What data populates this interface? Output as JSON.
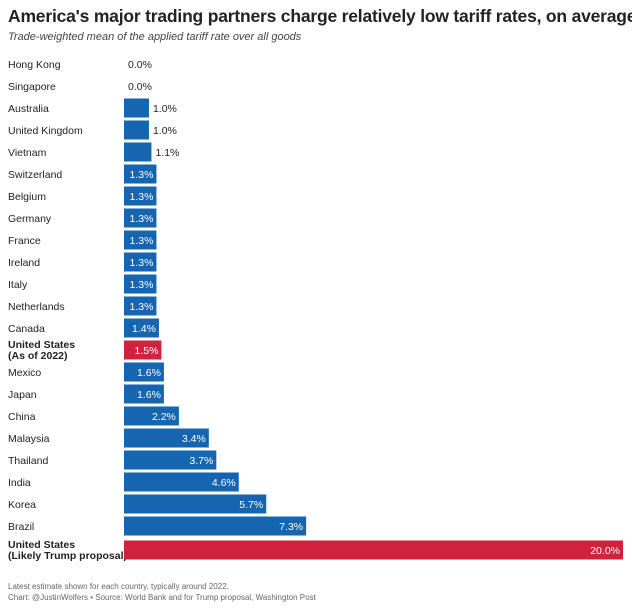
{
  "title": "America's major trading partners charge relatively low tariff rates, on average",
  "subtitle": "Trade-weighted mean of the applied tariff rate over all goods",
  "footer": {
    "note": "Latest estimate shown for each country, typically around 2022.",
    "credit": "Chart: @JustinWolfers • Source: World Bank and for Trump proposal, Washington Post"
  },
  "colors": {
    "default": "#1565b0",
    "highlight": "#d0223f"
  },
  "chart_data": {
    "type": "bar",
    "orientation": "horizontal",
    "xlim": [
      0,
      20
    ],
    "categories": [
      {
        "label": [
          "Hong Kong"
        ],
        "value": 0.0,
        "value_label": "0.0%",
        "highlight": false
      },
      {
        "label": [
          "Singapore"
        ],
        "value": 0.0,
        "value_label": "0.0%",
        "highlight": false
      },
      {
        "label": [
          "Australia"
        ],
        "value": 1.0,
        "value_label": "1.0%",
        "highlight": false
      },
      {
        "label": [
          "United Kingdom"
        ],
        "value": 1.0,
        "value_label": "1.0%",
        "highlight": false
      },
      {
        "label": [
          "Vietnam"
        ],
        "value": 1.1,
        "value_label": "1.1%",
        "highlight": false
      },
      {
        "label": [
          "Switzerland"
        ],
        "value": 1.3,
        "value_label": "1.3%",
        "highlight": false
      },
      {
        "label": [
          "Belgium"
        ],
        "value": 1.3,
        "value_label": "1.3%",
        "highlight": false
      },
      {
        "label": [
          "Germany"
        ],
        "value": 1.3,
        "value_label": "1.3%",
        "highlight": false
      },
      {
        "label": [
          "France"
        ],
        "value": 1.3,
        "value_label": "1.3%",
        "highlight": false
      },
      {
        "label": [
          "Ireland"
        ],
        "value": 1.3,
        "value_label": "1.3%",
        "highlight": false
      },
      {
        "label": [
          "Italy"
        ],
        "value": 1.3,
        "value_label": "1.3%",
        "highlight": false
      },
      {
        "label": [
          "Netherlands"
        ],
        "value": 1.3,
        "value_label": "1.3%",
        "highlight": false
      },
      {
        "label": [
          "Canada"
        ],
        "value": 1.4,
        "value_label": "1.4%",
        "highlight": false
      },
      {
        "label": [
          "United States",
          "(As of 2022)"
        ],
        "value": 1.5,
        "value_label": "1.5%",
        "highlight": true
      },
      {
        "label": [
          "Mexico"
        ],
        "value": 1.6,
        "value_label": "1.6%",
        "highlight": false
      },
      {
        "label": [
          "Japan"
        ],
        "value": 1.6,
        "value_label": "1.6%",
        "highlight": false
      },
      {
        "label": [
          "China"
        ],
        "value": 2.2,
        "value_label": "2.2%",
        "highlight": false
      },
      {
        "label": [
          "Malaysia"
        ],
        "value": 3.4,
        "value_label": "3.4%",
        "highlight": false
      },
      {
        "label": [
          "Thailand"
        ],
        "value": 3.7,
        "value_label": "3.7%",
        "highlight": false
      },
      {
        "label": [
          "India"
        ],
        "value": 4.6,
        "value_label": "4.6%",
        "highlight": false
      },
      {
        "label": [
          "Korea"
        ],
        "value": 5.7,
        "value_label": "5.7%",
        "highlight": false
      },
      {
        "label": [
          "Brazil"
        ],
        "value": 7.3,
        "value_label": "7.3%",
        "highlight": false
      },
      {
        "label": [
          "United States",
          "(Likely Trump proposal)"
        ],
        "value": 20.0,
        "value_label": "20.0%",
        "highlight": true
      }
    ]
  }
}
